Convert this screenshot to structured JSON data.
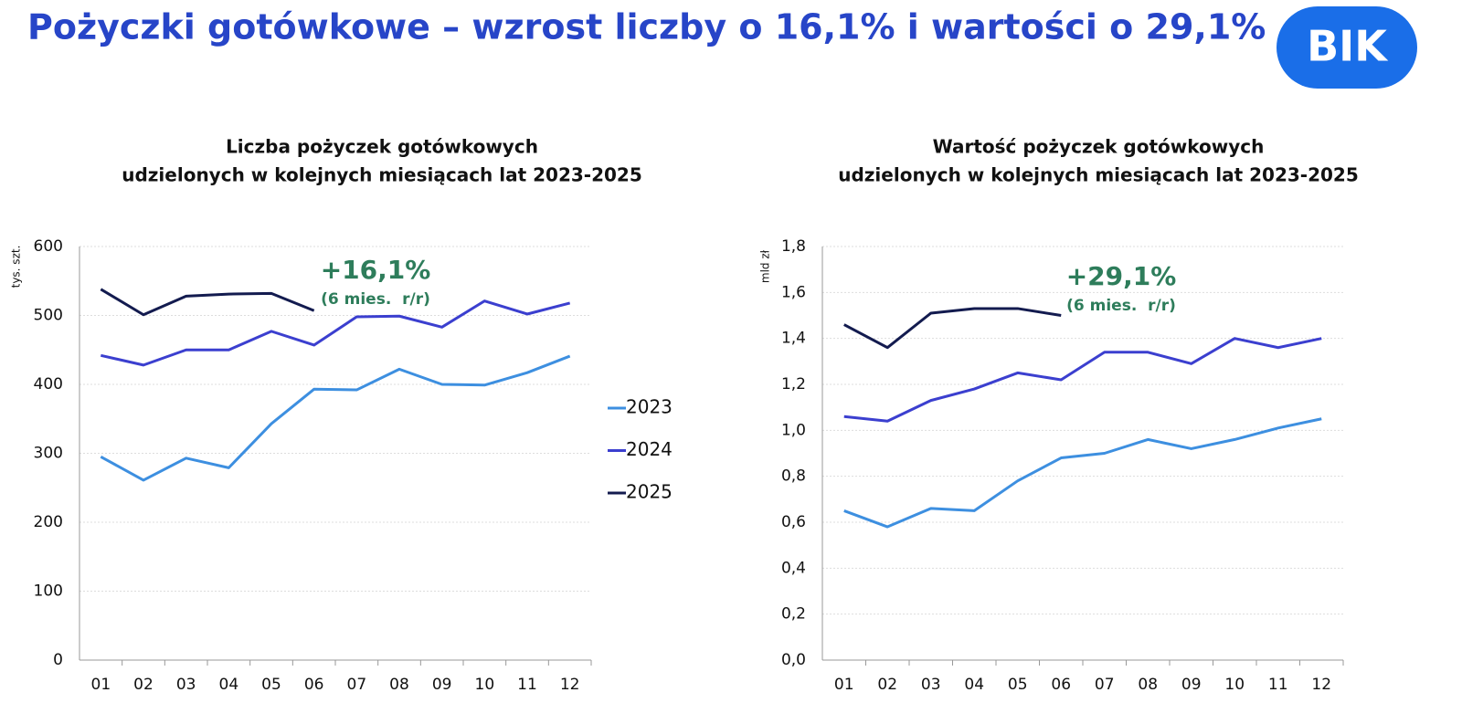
{
  "title": "Pożyczki gotówkowe – wzrost liczby o 16,1% i wartości o 29,1%",
  "logo": "BIK",
  "chart_data": [
    {
      "type": "line",
      "title": [
        "Liczba pożyczek gotówkowych",
        "udzielonych w kolejnych miesiącach lat 2023-2025"
      ],
      "y_label": "tys. szt.",
      "annotation": {
        "text": "+16,1%",
        "subtext": "(6 mies.  r/r)",
        "color": "#2e7d5b"
      },
      "categories": [
        "01",
        "02",
        "03",
        "04",
        "05",
        "06",
        "07",
        "08",
        "09",
        "10",
        "11",
        "12"
      ],
      "series": [
        {
          "name": "2023",
          "color": "#3d8fe0",
          "values": [
            295,
            261,
            293,
            279,
            343,
            393,
            392,
            422,
            400,
            399,
            417,
            441
          ]
        },
        {
          "name": "2024",
          "color": "#3b3fcf",
          "values": [
            442,
            428,
            450,
            450,
            477,
            457,
            498,
            499,
            483,
            521,
            502,
            518
          ]
        },
        {
          "name": "2025",
          "color": "#131b4f",
          "values": [
            538,
            501,
            528,
            531,
            532,
            507,
            null,
            null,
            null,
            null,
            null,
            null
          ]
        }
      ],
      "ylim": [
        0,
        600
      ],
      "yticks": [
        0,
        100,
        200,
        300,
        400,
        500,
        600
      ],
      "grid": true,
      "legend": "right"
    },
    {
      "type": "line",
      "title": [
        "Wartość pożyczek gotówkowych",
        "udzielonych w kolejnych miesiącach lat 2023-2025"
      ],
      "y_label": "mld zł",
      "annotation": {
        "text": "+29,1%",
        "subtext": "(6 mies.  r/r)",
        "color": "#2e7d5b"
      },
      "categories": [
        "01",
        "02",
        "03",
        "04",
        "05",
        "06",
        "07",
        "08",
        "09",
        "10",
        "11",
        "12"
      ],
      "series": [
        {
          "color": "#3d8fe0",
          "values": [
            0.65,
            0.58,
            0.66,
            0.65,
            0.78,
            0.88,
            0.9,
            0.96,
            0.92,
            0.96,
            1.01,
            1.05
          ]
        },
        {
          "color": "#3b3fcf",
          "values": [
            1.06,
            1.04,
            1.13,
            1.18,
            1.25,
            1.22,
            1.34,
            1.34,
            1.29,
            1.4,
            1.36,
            1.4
          ]
        },
        {
          "color": "#131b4f",
          "values": [
            1.46,
            1.36,
            1.51,
            1.53,
            1.53,
            1.5,
            null,
            null,
            null,
            null,
            null,
            null
          ]
        }
      ],
      "ylim": [
        0,
        1.8
      ],
      "yticks": [
        {
          "value": 0,
          "label": "0,0"
        },
        {
          "value": 0.2,
          "label": "0,2"
        },
        {
          "value": 0.4,
          "label": "0,4"
        },
        {
          "value": 0.6,
          "label": "0,6"
        },
        {
          "value": 0.8,
          "label": "0,8"
        },
        {
          "value": 1.0,
          "label": "1,0"
        },
        {
          "value": 1.2,
          "label": "1,2"
        },
        {
          "value": 1.4,
          "label": "1,4"
        },
        {
          "value": 1.6,
          "label": "1,6"
        },
        {
          "value": 1.8,
          "label": "1,8"
        }
      ],
      "grid": true
    }
  ]
}
